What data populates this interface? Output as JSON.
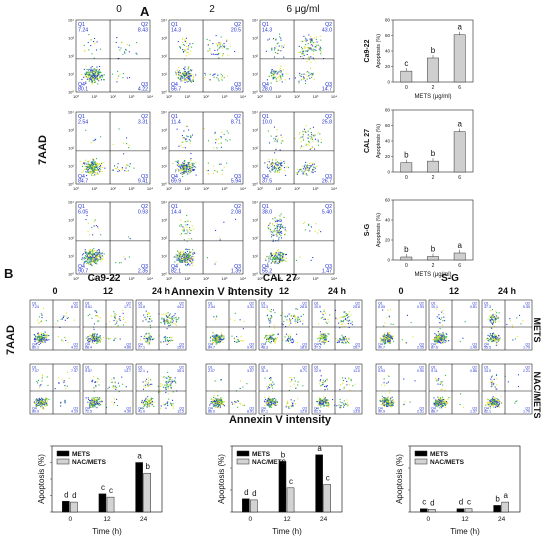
{
  "panel_a": {
    "label": "A",
    "col_headers": [
      "0",
      "2",
      "6 μg/ml"
    ],
    "y_title": "7AAD",
    "x_title": "Annexin V intensity",
    "quadrant_names": [
      "Q1",
      "Q2",
      "Q3",
      "Q4"
    ],
    "rows": [
      {
        "name": "Ca9-22",
        "plots": [
          {
            "q1": "7.24",
            "q2": "8.43",
            "q3": "4.22",
            "q4": "80.1"
          },
          {
            "q1": "14.3",
            "q2": "20.5",
            "q3": "8.56",
            "q4": "56.7"
          },
          {
            "q1": "14.3",
            "q2": "43.0",
            "q3": "14.7",
            "q4": "28.0"
          }
        ]
      },
      {
        "name": "CAL 27",
        "plots": [
          {
            "q1": "2.54",
            "q2": "3.31",
            "q3": "9.41",
            "q4": "84.7"
          },
          {
            "q1": "11.4",
            "q2": "8.71",
            "q3": "5.94",
            "q4": "69.9"
          },
          {
            "q1": "10.0",
            "q2": "25.8",
            "q3": "26.7",
            "q4": "37.5"
          }
        ]
      },
      {
        "name": "S-G",
        "plots": [
          {
            "q1": "6.05",
            "q2": "0.93",
            "q3": "2.35",
            "q4": "90.7"
          },
          {
            "q1": "14.4",
            "q2": "2.08",
            "q3": "1.39",
            "q4": "82.1"
          },
          {
            "q1": "38.0",
            "q2": "5.40",
            "q3": "1.47",
            "q4": "55.2"
          }
        ]
      }
    ],
    "axis_tick_labels": [
      "10⁰",
      "10¹",
      "10²",
      "10³",
      "10⁴"
    ]
  },
  "chart_data": [
    {
      "type": "bar",
      "title": "Ca9-22",
      "categories": [
        "0",
        "2",
        "6"
      ],
      "values": [
        14,
        31,
        61
      ],
      "letters": [
        "c",
        "b",
        "a"
      ],
      "ylabel": "Apoptosis (%)",
      "xlabel": "METS (μg/ml)",
      "ylim": [
        0,
        80
      ],
      "yticks": [
        "0",
        "20",
        "40",
        "60",
        "80"
      ]
    },
    {
      "type": "bar",
      "title": "CAL 27",
      "categories": [
        "0",
        "2",
        "6"
      ],
      "values": [
        12,
        14,
        52
      ],
      "letters": [
        "b",
        "b",
        "a"
      ],
      "ylabel": "Apoptosis (%)",
      "xlabel": "",
      "ylim": [
        0,
        80
      ],
      "yticks": [
        "0",
        "20",
        "40",
        "60",
        "80"
      ]
    },
    {
      "type": "bar",
      "title": "S-G",
      "categories": [
        "0",
        "2",
        "6"
      ],
      "values": [
        3,
        3.5,
        7
      ],
      "letters": [
        "b",
        "b",
        "a"
      ],
      "ylabel": "Apoptosis (%)",
      "xlabel": "METS (μg/ml)",
      "ylim": [
        0,
        60
      ],
      "yticks": [
        "0",
        "20",
        "40",
        "60"
      ]
    },
    {
      "type": "bar",
      "title": "Ca9-22",
      "xlabel": "Time (h)",
      "ylabel": "Apoptosis (%)",
      "categories": [
        "0",
        "12",
        "24"
      ],
      "ylim": [
        0,
        80
      ],
      "yticks": [
        "0",
        "20",
        "40",
        "60",
        "80"
      ],
      "series": [
        {
          "name": "METS",
          "values": [
            13,
            22,
            60
          ],
          "letters": [
            "d",
            "c",
            "a"
          ]
        },
        {
          "name": "NAC/METS",
          "values": [
            12,
            18,
            47
          ],
          "letters": [
            "d",
            "c",
            "b"
          ]
        }
      ]
    },
    {
      "type": "bar",
      "title": "CAL 27",
      "xlabel": "Time (h)",
      "ylabel": "Apoptosis (%)",
      "categories": [
        "0",
        "12",
        "24"
      ],
      "ylim": [
        0,
        60
      ],
      "yticks": [
        "0",
        "20",
        "40",
        "60"
      ],
      "series": [
        {
          "name": "METS",
          "values": [
            12,
            46,
            52
          ],
          "letters": [
            "d",
            "b",
            "a"
          ]
        },
        {
          "name": "NAC/METS",
          "values": [
            11,
            22,
            25
          ],
          "letters": [
            "d",
            "c",
            "c"
          ]
        }
      ]
    },
    {
      "type": "bar",
      "title": "S-G",
      "xlabel": "Time (h)",
      "ylabel": "Apoptosis (%)",
      "categories": [
        "0",
        "12",
        "24"
      ],
      "ylim": [
        0,
        60
      ],
      "yticks": [
        "0",
        "20",
        "40",
        "60"
      ],
      "series": [
        {
          "name": "METS",
          "values": [
            3,
            3,
            6
          ],
          "letters": [
            "c",
            "d",
            "b"
          ]
        },
        {
          "name": "NAC/METS",
          "values": [
            2.5,
            3,
            9
          ],
          "letters": [
            "d",
            "c",
            "a"
          ]
        }
      ]
    }
  ],
  "panel_b": {
    "label": "B",
    "groups": [
      {
        "name": "Ca9-22",
        "headers": [
          "0",
          "12",
          "24 h"
        ],
        "mets": [
          {
            "q1": "7.24",
            "q2": "8.43",
            "q3": "4.22",
            "q4": "80.1"
          },
          {
            "q1": "9.61",
            "q2": "17.1",
            "q3": "4.89",
            "q4": "68.4"
          },
          {
            "q1": "13.8",
            "q2": "44.2",
            "q3": "15.0",
            "q4": "27.1"
          }
        ],
        "nac": [
          {
            "q1": "7.07",
            "q2": "7.47",
            "q3": "4.19",
            "q4": "80.9"
          },
          {
            "q1": "9.57",
            "q2": "13.7",
            "q3": "4.30",
            "q4": "72.5"
          },
          {
            "q1": "12.1",
            "q2": "35.4",
            "q3": "11.5",
            "q4": "41.0"
          }
        ]
      },
      {
        "name": "CAL 27",
        "headers": [
          "0",
          "12",
          "24 h"
        ],
        "mets": [
          {
            "q1": "2.54",
            "q2": "3.31",
            "q3": "9.41",
            "q4": "84.7"
          },
          {
            "q1": "14.3",
            "q2": "28.8",
            "q3": "18.6",
            "q4": "48.3"
          },
          {
            "q1": "10.0",
            "q2": "25.8",
            "q3": "26.7",
            "q4": "37.5"
          }
        ],
        "nac": [
          {
            "q1": "2.07",
            "q2": "3.07",
            "q3": "8.91",
            "q4": "86.0"
          },
          {
            "q1": "11.4",
            "q2": "8.71",
            "q3": "12.8",
            "q4": "67.1"
          },
          {
            "q1": "12.9",
            "q2": "11.0",
            "q3": "13.6",
            "q4": "62.5"
          }
        ]
      },
      {
        "name": "S-G",
        "headers": [
          "0",
          "12",
          "24 h"
        ],
        "mets": [
          {
            "q1": "6.05",
            "q2": "0.93",
            "q3": "2.35",
            "q4": "90.7"
          },
          {
            "q1": "10.1",
            "q2": "0.81",
            "q3": "1.46",
            "q4": "87.6"
          },
          {
            "q1": "37.3",
            "q2": "5.45",
            "q3": "1.79",
            "q4": "55.5"
          }
        ],
        "nac": [
          {
            "q1": "5.93",
            "q2": "0.90",
            "q3": "2.31",
            "q4": "90.9"
          },
          {
            "q1": "9.11",
            "q2": "0.86",
            "q3": "1.37",
            "q4": "88.7"
          },
          {
            "q1": "14.0",
            "q2": "2.21",
            "q3": "1.70",
            "q4": "82.1"
          }
        ]
      }
    ],
    "row_labels": [
      "METS",
      "NAC/METS"
    ],
    "y_title": "7AAD",
    "x_title": "Annexin V intensity"
  },
  "colors": {
    "mets": "#000000",
    "nac": "#d3d3d3",
    "single_bar": "#cfcfcf",
    "blue_text": "#1f2fd0"
  }
}
